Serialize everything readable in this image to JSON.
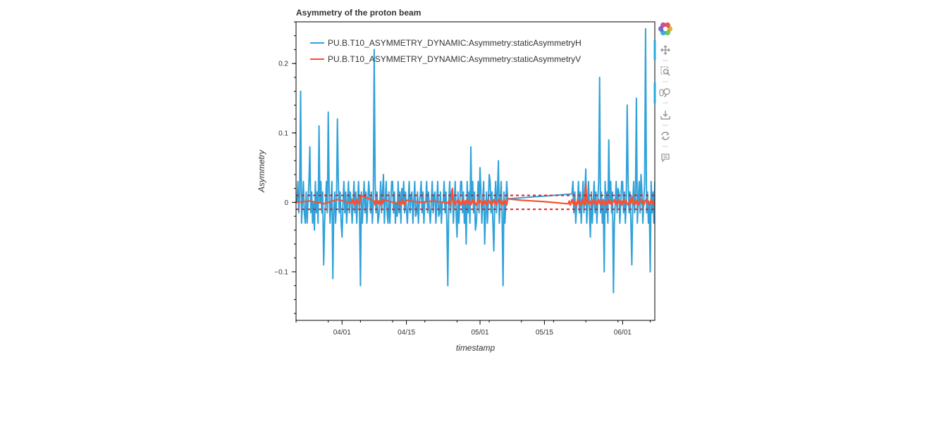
{
  "chart_data": {
    "type": "line",
    "title": "Asymmetry of the proton beam",
    "xlabel": "timestamp",
    "ylabel": "Asymmetry",
    "x_ticks": [
      "04/01",
      "04/15",
      "05/01",
      "05/15",
      "06/01"
    ],
    "y_ticks": [
      "−0.1",
      "0",
      "0.1",
      "0.2"
    ],
    "xlim": [
      "03/22",
      "06/08"
    ],
    "ylim": [
      -0.17,
      0.26
    ],
    "legend": "top-left",
    "grid": false,
    "thresholds": [
      0.01,
      -0.01
    ],
    "threshold_color": "#e31a1c",
    "series": [
      {
        "name": "PU.B.T10_ASYMMETRY_DYNAMIC:Asymmetry:staticAsymmetryH",
        "color": "#30a2da",
        "x": [
          "03/22",
          "03/23",
          "03/24",
          "03/25",
          "03/26",
          "03/27",
          "03/28",
          "03/29",
          "03/30",
          "03/31",
          "04/01",
          "04/03",
          "04/05",
          "04/07",
          "04/08",
          "04/09",
          "04/10",
          "04/11",
          "04/12",
          "04/13",
          "04/14",
          "04/15",
          "04/16",
          "04/17",
          "04/18",
          "04/19",
          "04/20",
          "04/21",
          "04/22",
          "04/23",
          "04/24",
          "04/25",
          "04/26",
          "04/27",
          "04/28",
          "04/29",
          "04/30",
          "05/01",
          "05/02",
          "05/03",
          "05/04",
          "05/05",
          "05/06",
          "05/07",
          "05/21",
          "05/22",
          "05/24",
          "05/25",
          "05/27",
          "05/28",
          "05/29",
          "05/30",
          "05/31",
          "06/01",
          "06/02",
          "06/03",
          "06/04",
          "06/05",
          "06/06",
          "06/07",
          "06/08"
        ],
        "y": [
          0.005,
          0.16,
          -0.03,
          0.08,
          -0.04,
          0.11,
          -0.09,
          0.13,
          -0.11,
          0.12,
          -0.05,
          0.0,
          -0.12,
          0.01,
          0.22,
          -0.02,
          0.04,
          -0.03,
          0.03,
          -0.02,
          0.02,
          -0.01,
          0.01,
          -0.02,
          0.01,
          0.0,
          -0.01,
          0.01,
          -0.02,
          0.0,
          -0.12,
          0.02,
          -0.05,
          0.03,
          -0.06,
          0.08,
          -0.04,
          0.05,
          -0.06,
          0.04,
          -0.07,
          0.06,
          -0.12,
          0.005,
          0.012,
          -0.005,
          0.048,
          -0.05,
          0.18,
          -0.1,
          0.09,
          -0.13,
          0.02,
          0.03,
          0.14,
          -0.09,
          0.15,
          0.04,
          0.25,
          -0.1,
          0.03
        ]
      },
      {
        "name": "PU.B.T10_ASYMMETRY_DYNAMIC:Asymmetry:staticAsymmetryV",
        "color": "#fc4f30",
        "x": [
          "03/22",
          "03/25",
          "03/28",
          "03/31",
          "04/03",
          "04/05",
          "04/08",
          "04/10",
          "04/13",
          "04/15",
          "04/18",
          "04/21",
          "04/24",
          "04/25",
          "04/26",
          "04/28",
          "04/30",
          "05/01",
          "05/03",
          "05/05",
          "05/07",
          "05/10",
          "05/15",
          "05/20",
          "05/22",
          "05/24",
          "05/25",
          "05/26",
          "05/28",
          "05/30",
          "06/01",
          "06/02",
          "06/03",
          "06/05",
          "06/06",
          "06/08"
        ],
        "y": [
          0.0,
          0.002,
          -0.002,
          0.004,
          -0.001,
          0.01,
          0.002,
          0.004,
          -0.002,
          0.003,
          0.0,
          0.002,
          -0.001,
          0.02,
          0.001,
          0.003,
          -0.002,
          0.002,
          0.001,
          0.004,
          0.005,
          0.003,
          0.001,
          -0.002,
          -0.005,
          0.027,
          0.0,
          0.002,
          -0.003,
          0.001,
          0.002,
          -0.002,
          0.008,
          0.004,
          0.003,
          0.002
        ]
      }
    ]
  },
  "toolbar": {
    "items": [
      {
        "icon": "bokeh-logo-icon"
      },
      {
        "icon": "pan-icon"
      },
      {
        "icon": "box-zoom-icon"
      },
      {
        "icon": "wheel-zoom-icon"
      },
      {
        "icon": "save-icon"
      },
      {
        "icon": "reset-icon"
      },
      {
        "icon": "hover-icon"
      }
    ]
  }
}
